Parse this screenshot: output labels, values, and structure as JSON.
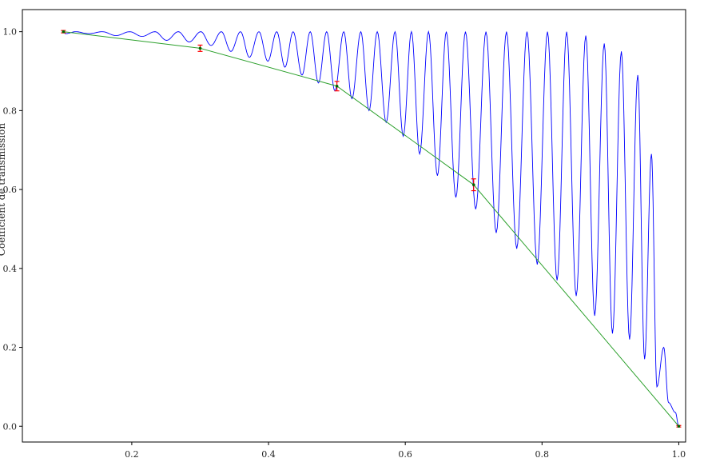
{
  "chart_data": {
    "type": "line",
    "xlabel": "",
    "ylabel": "Coefficient de transmission",
    "xlim": [
      0.04,
      1.01
    ],
    "ylim": [
      -0.04,
      1.056
    ],
    "x_ticks": [
      0.2,
      0.4,
      0.6,
      0.8,
      1.0
    ],
    "x_tick_labels": [
      "0.2",
      "0.4",
      "0.6",
      "0.8",
      "1.0"
    ],
    "y_ticks": [
      0.0,
      0.2,
      0.4,
      0.6,
      0.8,
      1.0
    ],
    "y_tick_labels": [
      "0.0",
      "0.2",
      "0.4",
      "0.6",
      "0.8",
      "1.0"
    ],
    "grid": false,
    "legend": "none",
    "series": [
      {
        "kind": "theory_curve",
        "color": "#0000ff",
        "x_range": [
          0.1,
          1.0
        ],
        "oscillation_peaks_x": [
          0.1,
          0.118,
          0.157,
          0.197,
          0.234,
          0.268,
          0.301,
          0.331,
          0.359,
          0.386,
          0.412,
          0.436,
          0.461,
          0.485,
          0.51,
          0.535,
          0.559,
          0.585,
          0.609,
          0.634,
          0.66,
          0.688,
          0.718,
          0.748,
          0.778,
          0.808,
          0.836,
          0.864,
          0.891,
          0.916,
          0.94,
          0.96,
          0.978
        ],
        "oscillation_troughs_x": [
          0.103,
          0.137,
          0.177,
          0.215,
          0.251,
          0.284,
          0.316,
          0.345,
          0.372,
          0.399,
          0.424,
          0.449,
          0.473,
          0.497,
          0.522,
          0.547,
          0.572,
          0.597,
          0.621,
          0.647,
          0.674,
          0.703,
          0.733,
          0.763,
          0.793,
          0.822,
          0.85,
          0.877,
          0.903,
          0.928,
          0.95,
          0.968,
          0.985,
          0.995
        ],
        "trough_min_y": [
          0.995,
          0.995,
          0.99,
          0.988,
          0.978,
          0.974,
          0.965,
          0.95,
          0.935,
          0.925,
          0.91,
          0.89,
          0.87,
          0.85,
          0.83,
          0.8,
          0.77,
          0.735,
          0.69,
          0.635,
          0.58,
          0.55,
          0.49,
          0.45,
          0.41,
          0.37,
          0.33,
          0.28,
          0.235,
          0.22,
          0.17,
          0.1,
          0.06,
          0.035
        ],
        "peak_max_y": [
          1.0,
          1.0,
          1.0,
          1.0,
          1.0,
          1.0,
          1.0,
          1.0,
          1.0,
          1.0,
          1.0,
          1.0,
          1.0,
          1.0,
          1.0,
          1.0,
          1.0,
          1.0,
          1.0,
          1.0,
          1.0,
          1.0,
          1.0,
          1.0,
          1.0,
          1.0,
          1.0,
          0.99,
          0.97,
          0.95,
          0.89,
          0.69,
          0.2
        ]
      },
      {
        "kind": "measurement",
        "color": "#2ca02c",
        "marker_color": "#006400",
        "errorbar_color": "#ff0000",
        "x": [
          0.1,
          0.3,
          0.5,
          0.7,
          1.0
        ],
        "y": [
          1.0,
          0.958,
          0.862,
          0.612,
          0.0
        ],
        "yerr": [
          0.003,
          0.008,
          0.012,
          0.015,
          0.002
        ]
      }
    ]
  },
  "colors": {
    "axes": "#000000",
    "background": "#ffffff"
  }
}
